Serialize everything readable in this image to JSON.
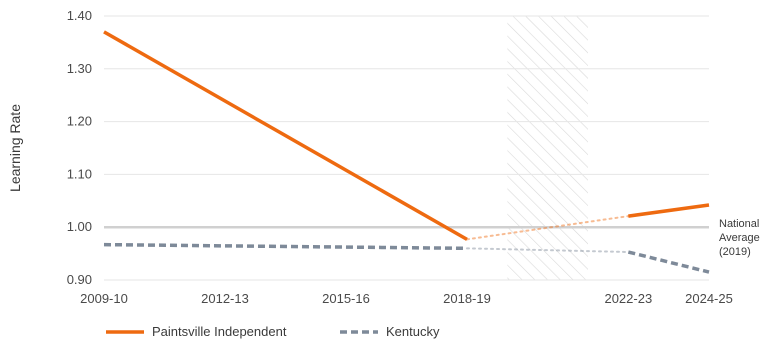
{
  "chart_data": {
    "type": "line",
    "ylabel": "Learning Rate",
    "xlabel": "",
    "ylim": [
      0.9,
      1.4
    ],
    "yticks": [
      "1.40",
      "1.30",
      "1.20",
      "1.10",
      "1.00",
      "0.90"
    ],
    "ytick_values": [
      1.4,
      1.3,
      1.2,
      1.1,
      1.0,
      0.9
    ],
    "x_ticks": [
      {
        "label": "2009-10",
        "year": 2009
      },
      {
        "label": "2012-13",
        "year": 2012
      },
      {
        "label": "2015-16",
        "year": 2015
      },
      {
        "label": "2018-19",
        "year": 2018
      },
      {
        "label": "2022-23",
        "year": 2022
      },
      {
        "label": "2024-25",
        "year": 2024
      }
    ],
    "x_range": [
      2009,
      2024
    ],
    "shaded_period": [
      2019,
      2021
    ],
    "reference_line": {
      "value": 1.0,
      "label_lines": [
        "National",
        "Average",
        "(2019)"
      ]
    },
    "series": [
      {
        "name": "Paintsville Independent",
        "color": "#ee6a10",
        "style": "solid",
        "segments": [
          [
            {
              "year": 2009,
              "value": 1.37
            },
            {
              "year": 2018,
              "value": 0.977
            }
          ],
          [
            {
              "year": 2022,
              "value": 1.021
            },
            {
              "year": 2024,
              "value": 1.042
            }
          ]
        ],
        "bridge": [
          {
            "year": 2018,
            "value": 0.977
          },
          {
            "year": 2022,
            "value": 1.021
          }
        ]
      },
      {
        "name": "Kentucky",
        "color": "#7e8a99",
        "style": "dashed",
        "segments": [
          [
            {
              "year": 2009,
              "value": 0.967
            },
            {
              "year": 2018,
              "value": 0.96
            }
          ],
          [
            {
              "year": 2022,
              "value": 0.953
            },
            {
              "year": 2024,
              "value": 0.915
            }
          ]
        ],
        "bridge": [
          {
            "year": 2018,
            "value": 0.96
          },
          {
            "year": 2022,
            "value": 0.953
          }
        ]
      }
    ],
    "legend": {
      "placement": "bottom-left"
    },
    "grid": true
  }
}
